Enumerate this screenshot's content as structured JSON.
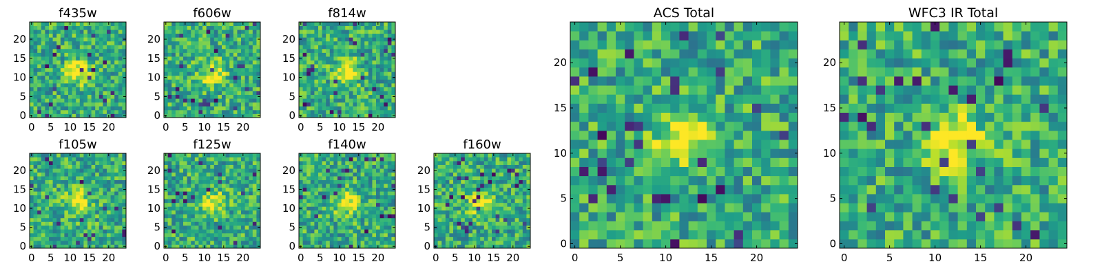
{
  "chart_data": [
    {
      "type": "heatmap",
      "title": "f435w",
      "xticks": [
        "0",
        "5",
        "10",
        "15",
        "20"
      ],
      "yticks": [
        "0",
        "5",
        "10",
        "15",
        "20"
      ],
      "xlim": [
        0,
        25
      ],
      "ylim": [
        0,
        25
      ],
      "grid": 25,
      "colormap": "viridis",
      "size": "small"
    },
    {
      "type": "heatmap",
      "title": "f606w",
      "xticks": [
        "0",
        "5",
        "10",
        "15",
        "20"
      ],
      "yticks": [
        "0",
        "5",
        "10",
        "15",
        "20"
      ],
      "xlim": [
        0,
        25
      ],
      "ylim": [
        0,
        25
      ],
      "grid": 25,
      "colormap": "viridis",
      "size": "small"
    },
    {
      "type": "heatmap",
      "title": "f814w",
      "xticks": [
        "0",
        "5",
        "10",
        "15",
        "20"
      ],
      "yticks": [
        "0",
        "5",
        "10",
        "15",
        "20"
      ],
      "xlim": [
        0,
        25
      ],
      "ylim": [
        0,
        25
      ],
      "grid": 25,
      "colormap": "viridis",
      "size": "small"
    },
    {
      "type": "heatmap",
      "title": "f105w",
      "xticks": [
        "0",
        "5",
        "10",
        "15",
        "20"
      ],
      "yticks": [
        "0",
        "5",
        "10",
        "15",
        "20"
      ],
      "xlim": [
        0,
        25
      ],
      "ylim": [
        0,
        25
      ],
      "grid": 25,
      "colormap": "viridis",
      "size": "small"
    },
    {
      "type": "heatmap",
      "title": "f125w",
      "xticks": [
        "0",
        "5",
        "10",
        "15",
        "20"
      ],
      "yticks": [
        "0",
        "5",
        "10",
        "15",
        "20"
      ],
      "xlim": [
        0,
        25
      ],
      "ylim": [
        0,
        25
      ],
      "grid": 25,
      "colormap": "viridis",
      "size": "small"
    },
    {
      "type": "heatmap",
      "title": "f140w",
      "xticks": [
        "0",
        "5",
        "10",
        "15",
        "20"
      ],
      "yticks": [
        "0",
        "5",
        "10",
        "15",
        "20"
      ],
      "xlim": [
        0,
        25
      ],
      "ylim": [
        0,
        25
      ],
      "grid": 25,
      "colormap": "viridis",
      "size": "small"
    },
    {
      "type": "heatmap",
      "title": "f160w",
      "xticks": [
        "0",
        "5",
        "10",
        "15",
        "20"
      ],
      "yticks": [
        "0",
        "5",
        "10",
        "15",
        "20"
      ],
      "xlim": [
        0,
        25
      ],
      "ylim": [
        0,
        25
      ],
      "grid": 25,
      "colormap": "viridis",
      "size": "small"
    },
    {
      "type": "heatmap",
      "title": "ACS Total",
      "xticks": [
        "0",
        "5",
        "10",
        "15",
        "20"
      ],
      "yticks": [
        "0",
        "5",
        "10",
        "15",
        "20"
      ],
      "xlim": [
        0,
        25
      ],
      "ylim": [
        0,
        25
      ],
      "grid": 25,
      "colormap": "viridis",
      "size": "large"
    },
    {
      "type": "heatmap",
      "title": "WFC3 IR Total",
      "xticks": [
        "0",
        "5",
        "10",
        "15",
        "20"
      ],
      "yticks": [
        "0",
        "5",
        "10",
        "15",
        "20"
      ],
      "xlim": [
        0,
        25
      ],
      "ylim": [
        0,
        25
      ],
      "grid": 25,
      "colormap": "viridis",
      "size": "large"
    }
  ]
}
